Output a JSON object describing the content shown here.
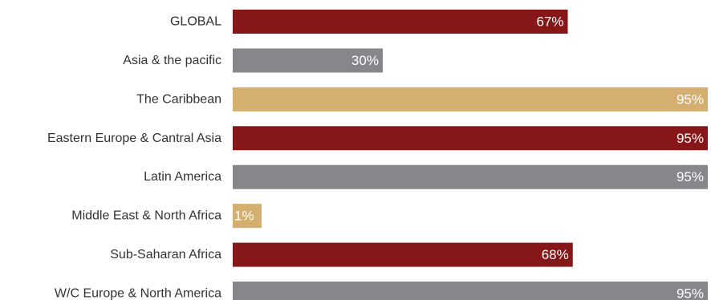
{
  "chart_data": {
    "type": "bar",
    "orientation": "horizontal",
    "categories": [
      "GLOBAL",
      "Asia & the pacific",
      "The Caribbean",
      "Eastern Europe & Cantral Asia",
      "Latin America",
      "Middle East & North Africa",
      "Sub-Saharan Africa",
      "W/C Europe & North America"
    ],
    "values": [
      67,
      30,
      95,
      95,
      95,
      1,
      68,
      95
    ],
    "value_labels": [
      "67%",
      "30%",
      "95%",
      "95%",
      "95%",
      "1%",
      "68%",
      "95%"
    ],
    "bar_colors": [
      "#861718",
      "#86878a",
      "#d4af6f",
      "#861718",
      "#86878a",
      "#d4af6f",
      "#861718",
      "#86878a"
    ],
    "value_label_color": "#ffffff",
    "category_label_color": "#333333",
    "xlim": [
      0,
      95
    ],
    "grid": false,
    "legend": "none"
  }
}
